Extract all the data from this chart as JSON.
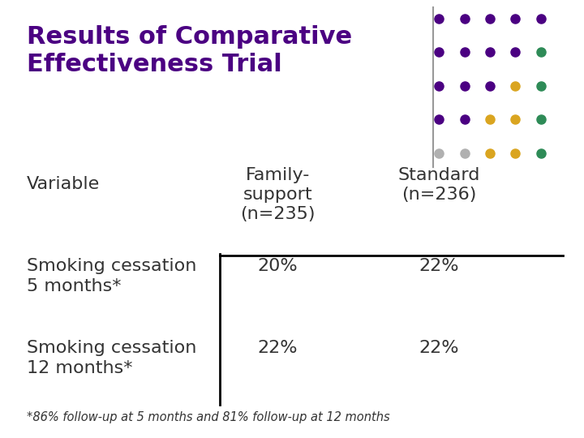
{
  "title_line1": "Results of Comparative",
  "title_line2": "Effectiveness Trial",
  "title_color": "#4b0082",
  "background_color": "#ffffff",
  "table_text_color": "#333333",
  "line_color": "#000000",
  "dot_grid_colors": [
    [
      "#4b0082",
      "#4b0082",
      "#4b0082",
      "#4b0082",
      "#4b0082"
    ],
    [
      "#4b0082",
      "#4b0082",
      "#4b0082",
      "#4b0082",
      "#2e8b57"
    ],
    [
      "#4b0082",
      "#4b0082",
      "#4b0082",
      "#daa520",
      "#2e8b57"
    ],
    [
      "#4b0082",
      "#4b0082",
      "#daa520",
      "#daa520",
      "#2e8b57"
    ],
    [
      "#b0b0b0",
      "#b0b0b0",
      "#daa520",
      "#daa520",
      "#2e8b57"
    ]
  ],
  "col_header_variable": "Variable",
  "col_header_family": "Family-\nsupport\n(n=235)",
  "col_header_standard": "Standard\n(n=236)",
  "row1_label_line1": "Smoking cessation",
  "row1_label_line2": "5 months*",
  "row1_val1": "20%",
  "row1_val2": "22%",
  "row2_label_line1": "Smoking cessation",
  "row2_label_line2": "12 months*",
  "row2_val1": "22%",
  "row2_val2": "22%",
  "footnote": "*86% follow-up at 5 months and 81% follow-up at 12 months",
  "figsize": [
    7.2,
    5.4
  ],
  "dpi": 100
}
